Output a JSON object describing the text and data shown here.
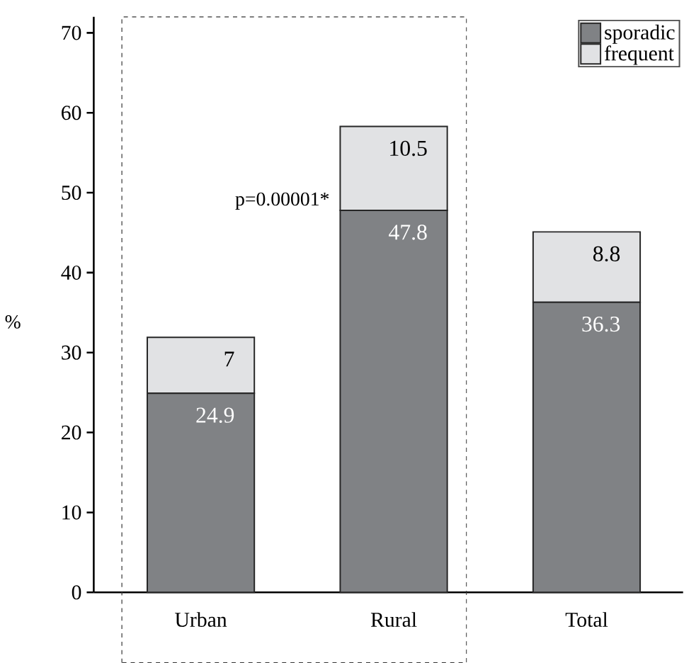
{
  "chart_data": {
    "type": "bar",
    "stacked": true,
    "categories": [
      "Urban",
      "Rural",
      "Total"
    ],
    "series": [
      {
        "name": "sporadic",
        "color": "#808285",
        "values": [
          24.9,
          47.8,
          36.3
        ],
        "value_labels": [
          "24.9",
          "47.8",
          "36.3"
        ]
      },
      {
        "name": "frequent",
        "color": "#e1e2e4",
        "values": [
          7,
          10.5,
          8.8
        ],
        "value_labels": [
          "7",
          "10.5",
          "8.8"
        ]
      }
    ],
    "ylabel": "%",
    "ylim": [
      0,
      72
    ],
    "yticks": [
      0,
      10,
      20,
      30,
      40,
      50,
      60,
      70
    ],
    "legend": "top right",
    "annotations": [
      "p=0.00001*"
    ],
    "grid": false
  }
}
